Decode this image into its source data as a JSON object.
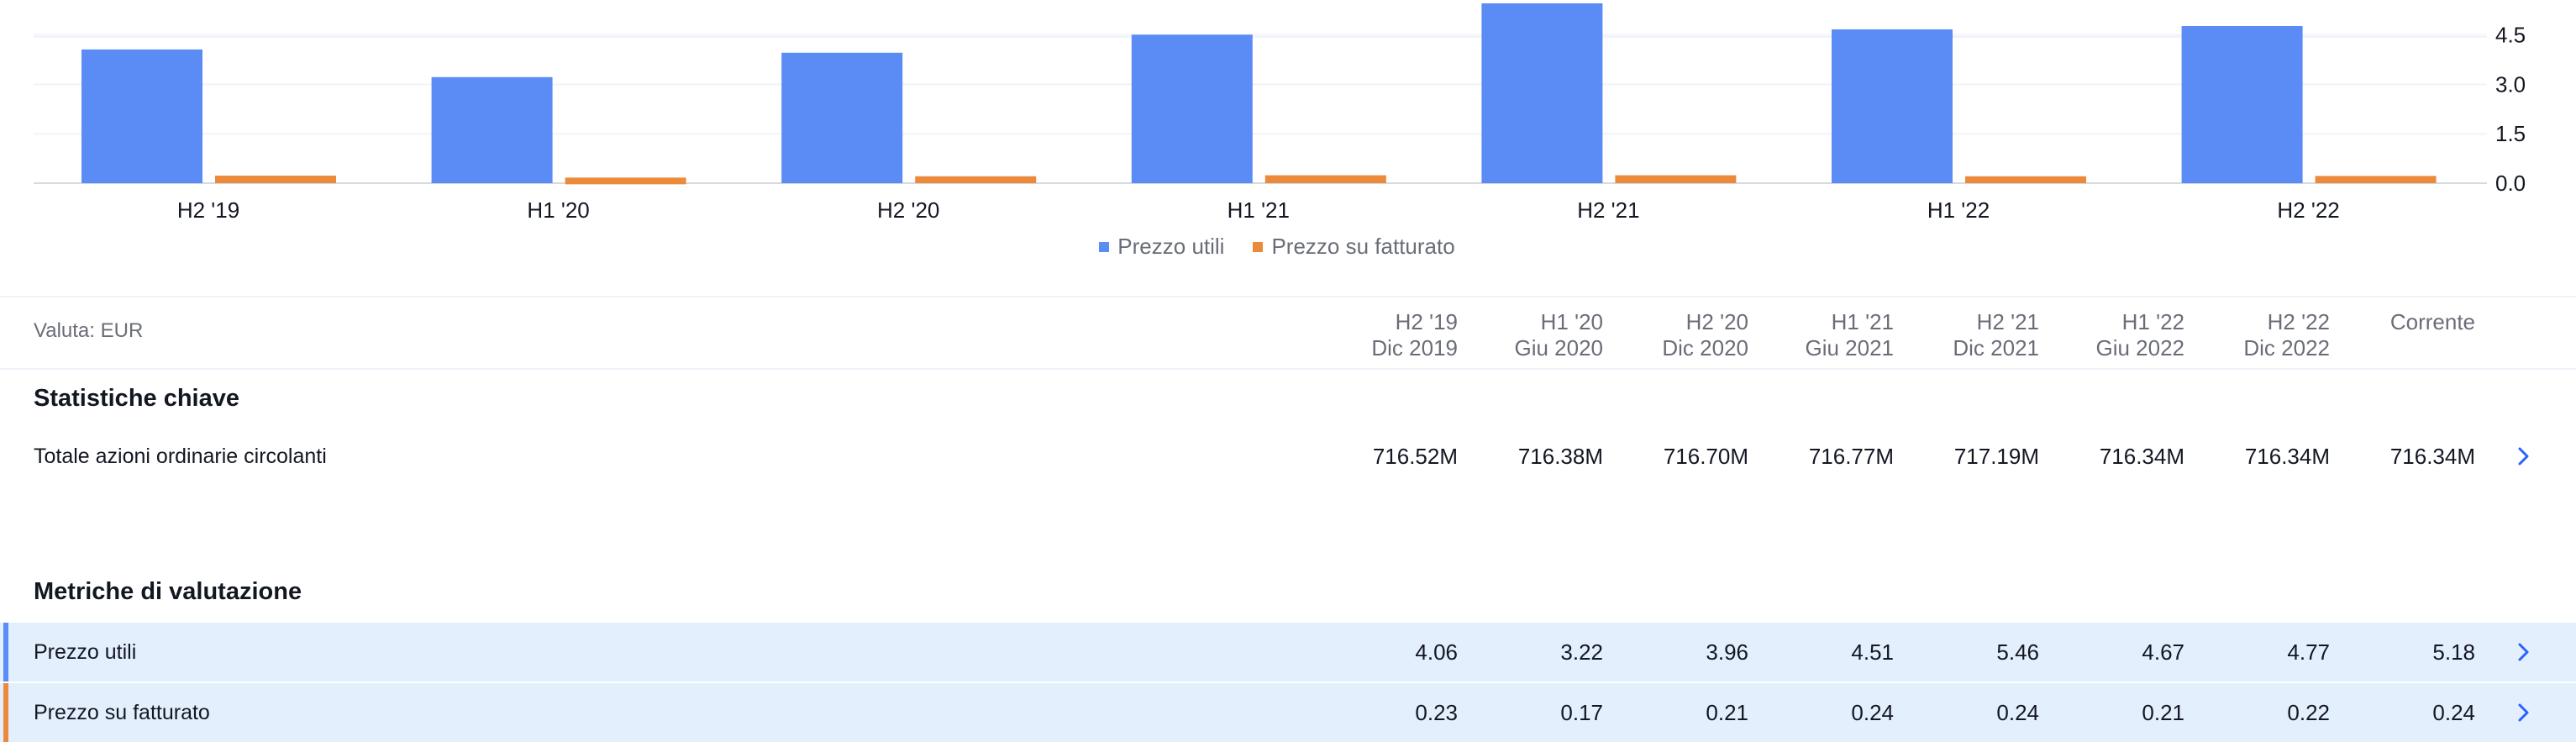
{
  "chart_data": {
    "type": "bar",
    "categories": [
      "H2 '19",
      "H1 '20",
      "H2 '20",
      "H1 '21",
      "H2 '21",
      "H1 '22",
      "H2 '22"
    ],
    "series": [
      {
        "name": "Prezzo utili",
        "values": [
          4.06,
          3.22,
          3.96,
          4.51,
          5.46,
          4.67,
          4.77
        ],
        "color": "#5b8cf5"
      },
      {
        "name": "Prezzo su fatturato",
        "values": [
          0.23,
          0.17,
          0.21,
          0.24,
          0.24,
          0.21,
          0.22
        ],
        "color": "#ec8a3b"
      }
    ],
    "y_ticks": [
      "0.0",
      "1.5",
      "3.0",
      "4.5"
    ],
    "ylim": [
      0,
      5.5
    ],
    "legend_position": "bottom-center",
    "grid": true
  },
  "legend": [
    "Prezzo utili",
    "Prezzo su fatturato"
  ],
  "table": {
    "currency_label": "Valuta: EUR",
    "periods": [
      {
        "top": "H2 '19",
        "bottom": "Dic 2019"
      },
      {
        "top": "H1 '20",
        "bottom": "Giu 2020"
      },
      {
        "top": "H2 '20",
        "bottom": "Dic 2020"
      },
      {
        "top": "H1 '21",
        "bottom": "Giu 2021"
      },
      {
        "top": "H2 '21",
        "bottom": "Dic 2021"
      },
      {
        "top": "H1 '22",
        "bottom": "Giu 2022"
      },
      {
        "top": "H2 '22",
        "bottom": "Dic 2022"
      },
      {
        "top": "Corrente",
        "bottom": ""
      }
    ],
    "sections": [
      {
        "title": "Statistiche chiave",
        "rows": [
          {
            "label": "Totale azioni ordinarie circolanti",
            "values": [
              "716.52M",
              "716.38M",
              "716.70M",
              "716.77M",
              "717.19M",
              "716.34M",
              "716.34M",
              "716.34M"
            ]
          }
        ]
      },
      {
        "title": "Metriche di valutazione",
        "rows": [
          {
            "label": "Prezzo utili",
            "values": [
              "4.06",
              "3.22",
              "3.96",
              "4.51",
              "5.46",
              "4.67",
              "4.77",
              "5.18"
            ],
            "marker_color": "#5b8cf5"
          },
          {
            "label": "Prezzo su fatturato",
            "values": [
              "0.23",
              "0.17",
              "0.21",
              "0.24",
              "0.24",
              "0.21",
              "0.22",
              "0.24"
            ],
            "marker_color": "#ec8a3b"
          }
        ]
      }
    ]
  },
  "icons": {
    "row_expand": "chevron-right-icon"
  }
}
